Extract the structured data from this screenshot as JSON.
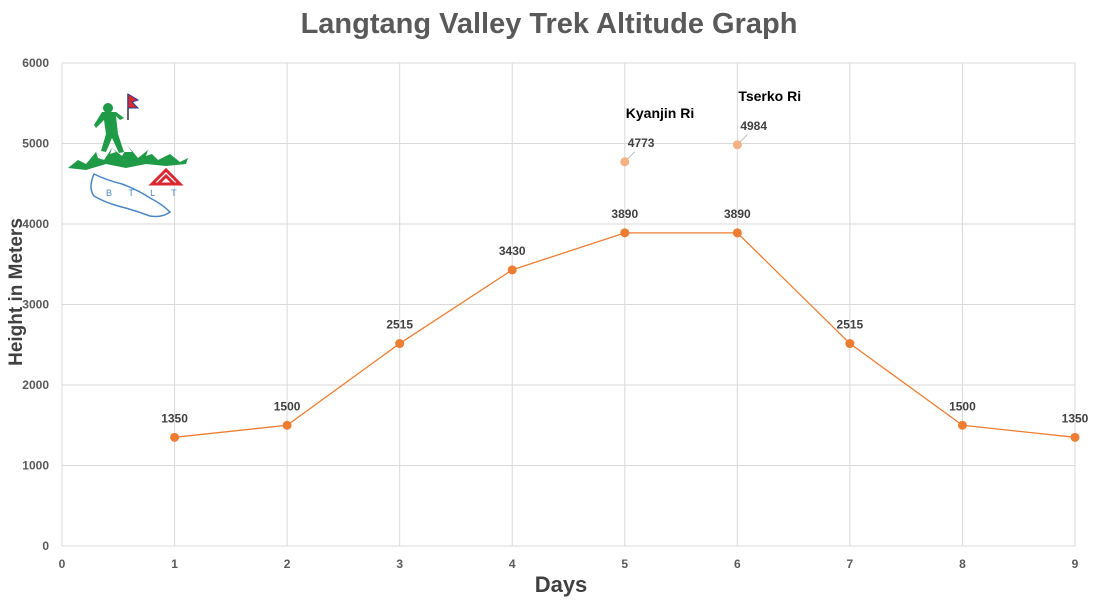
{
  "colors": {
    "line": "#ed7d31",
    "marker": "#ed7d31",
    "peak_marker": "#f4b183",
    "grid": "#d9d9d9"
  },
  "logo": {
    "icon": "trekker-mountain-logo",
    "text": "B T L T"
  },
  "chart_data": {
    "type": "line",
    "title": "Langtang Valley Trek Altitude Graph",
    "xlabel": "Days",
    "ylabel": "Height in Meters",
    "xlim": [
      0,
      9
    ],
    "ylim": [
      0,
      6000
    ],
    "x_ticks": [
      0,
      1,
      2,
      3,
      4,
      5,
      6,
      7,
      8,
      9
    ],
    "y_ticks": [
      0,
      1000,
      2000,
      3000,
      4000,
      5000,
      6000
    ],
    "grid": true,
    "legend": "none",
    "series": [
      {
        "x": [
          1,
          2,
          3,
          4,
          5,
          6,
          7,
          8,
          9
        ],
        "values": [
          1350,
          1500,
          2515,
          3430,
          3890,
          3890,
          2515,
          1500,
          1350
        ]
      }
    ],
    "side_peaks": [
      {
        "name": "Kyanjin Ri",
        "x": 5,
        "value": 4773
      },
      {
        "name": "Tserko Ri",
        "x": 6,
        "value": 4984
      }
    ]
  }
}
